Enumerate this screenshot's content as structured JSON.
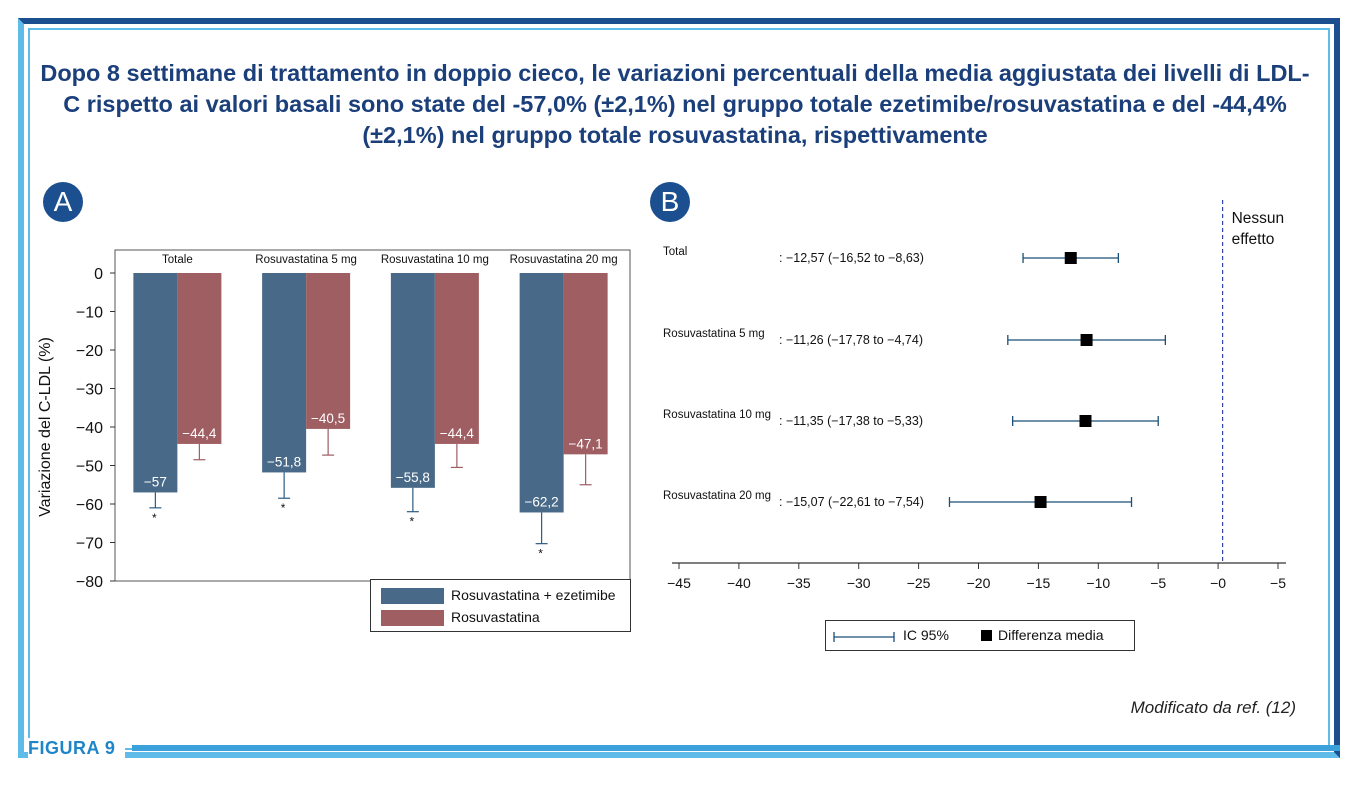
{
  "title": "Dopo 8 settimane di trattamento in doppio cieco, le variazioni percentuali della media aggiustata dei livelli di LDL-C rispetto ai valori basali sono state del -57,0% (±2,1%) nel gruppo totale ezetimibe/rosuvastatina e del -44,4% (±2,1%) nel gruppo totale rosuvastatina, rispettivamente",
  "figure_label": "FIGURA 9",
  "credit": "Modificato da ref. (12)",
  "colors": {
    "series1": "#486a88",
    "series2": "#9e5e62",
    "forest": "#1b4f78",
    "frame_dark": "#1b4f8f",
    "frame_light": "#5fbbe8"
  },
  "chart_data": [
    {
      "type": "bar",
      "panel": "A",
      "ylabel": "Variazione del C-LDL (%)",
      "ylim": [
        -80,
        0
      ],
      "yticks": [
        "0",
        "−10",
        "−20",
        "−30",
        "−40",
        "−50",
        "−60",
        "−70",
        "−80"
      ],
      "categories": [
        "Totale",
        "Rosuvastatina 5 mg",
        "Rosuvastatina 10 mg",
        "Rosuvastatina 20 mg"
      ],
      "series": [
        {
          "name": "Rosuvastatina + ezetimibe",
          "values": [
            -57,
            -51.8,
            -55.8,
            -62.2
          ],
          "labels": [
            "−57",
            "−51,8",
            "−55,8",
            "−62,2"
          ],
          "error_low": [
            -61,
            -58.5,
            -62,
            -70.3
          ]
        },
        {
          "name": "Rosuvastatina",
          "values": [
            -44.4,
            -40.5,
            -44.4,
            -47.1
          ],
          "labels": [
            "−44,4",
            "−40,5",
            "−44,4",
            "−47,1"
          ],
          "error_low": [
            -48.5,
            -47.3,
            -50.5,
            -55
          ]
        }
      ],
      "significance_marks": [
        "*",
        "*",
        "*",
        "*"
      ],
      "legend_position": "bottom-right"
    },
    {
      "type": "forest",
      "panel": "B",
      "no_effect_label": "Nessun effetto",
      "no_effect_value": 0,
      "xlim": [
        -45,
        5
      ],
      "xticks": [
        "−45",
        "−40",
        "−35",
        "−30",
        "−25",
        "−20",
        "−15",
        "−10",
        "−5",
        "−0",
        "−5"
      ],
      "rows": [
        {
          "label": "Total",
          "estimate_text": ": −12,57 (−16,52 to −8,63)",
          "mean": -12.57,
          "ci_low": -16.52,
          "ci_high": -8.63
        },
        {
          "label": "Rosuvastatina 5 mg",
          "estimate_text": ": −11,26 (−17,78 to −4,74)",
          "mean": -11.26,
          "ci_low": -17.78,
          "ci_high": -4.74
        },
        {
          "label": "Rosuvastatina 10 mg",
          "estimate_text": ": −11,35 (−17,38 to −5,33)",
          "mean": -11.35,
          "ci_low": -17.38,
          "ci_high": -5.33
        },
        {
          "label": "Rosuvastatina 20 mg",
          "estimate_text": ": −15,07 (−22,61 to −7,54)",
          "mean": -15.07,
          "ci_low": -22.61,
          "ci_high": -7.54
        }
      ],
      "legend": {
        "ci_label": "IC 95%",
        "mean_label": "Differenza media"
      }
    }
  ]
}
